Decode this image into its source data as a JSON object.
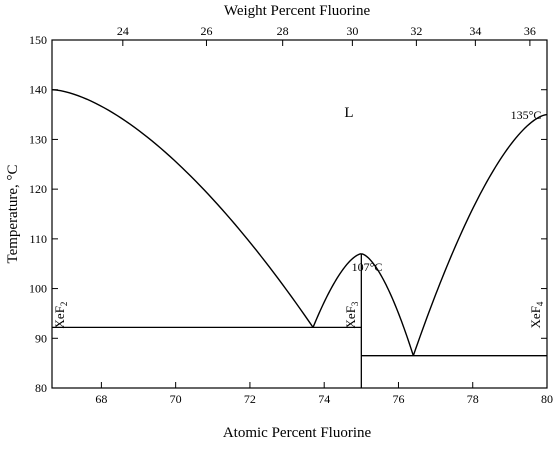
{
  "diagram": {
    "type": "phase-diagram",
    "top_axis": {
      "title": "Weight Percent Fluorine",
      "ticks": [
        "24",
        "26",
        "28",
        "30",
        "32",
        "34",
        "36"
      ],
      "tick_values": [
        24,
        26,
        28,
        30,
        32,
        34,
        36
      ]
    },
    "bottom_axis": {
      "title": "Atomic Percent Fluorine",
      "range": [
        66.67,
        80
      ],
      "ticks": [
        "68",
        "70",
        "72",
        "74",
        "76",
        "78",
        "80"
      ],
      "tick_values": [
        68,
        70,
        72,
        74,
        76,
        78,
        80
      ]
    },
    "left_axis": {
      "title": "Temperature, °C",
      "range": [
        80,
        150
      ],
      "ticks": [
        "80",
        "90",
        "100",
        "110",
        "120",
        "130",
        "140",
        "150"
      ],
      "tick_values": [
        80,
        90,
        100,
        110,
        120,
        130,
        140,
        150
      ]
    },
    "phase_label": "L",
    "annotations": {
      "congruent_melting": "107°C",
      "xef4_melting": "135°C"
    },
    "compounds": [
      {
        "base": "XeF",
        "sub": "2",
        "at_pct": 66.67
      },
      {
        "base": "XeF",
        "sub": "3",
        "at_pct": 75.0
      },
      {
        "base": "XeF",
        "sub": "4",
        "at_pct": 80.0
      }
    ],
    "curves": {
      "xef2_liquidus": {
        "from": [
          66.67,
          140
        ],
        "to": [
          73.7,
          92.2
        ]
      },
      "xef3_left_liquidus": {
        "from": [
          73.7,
          92.2
        ],
        "to": [
          74.9,
          107
        ]
      },
      "xef3_right_liquidus": {
        "from": [
          75.1,
          107
        ],
        "to": [
          76.4,
          86.5
        ]
      },
      "xef4_liquidus": {
        "from": [
          76.4,
          86.5
        ],
        "to": [
          80,
          135
        ]
      }
    },
    "eutectics": [
      {
        "at_pct": 73.7,
        "temp": 92.2,
        "span": [
          66.67,
          75.0
        ]
      },
      {
        "at_pct": 76.4,
        "temp": 86.5,
        "span": [
          75.0,
          80.0
        ]
      }
    ]
  }
}
